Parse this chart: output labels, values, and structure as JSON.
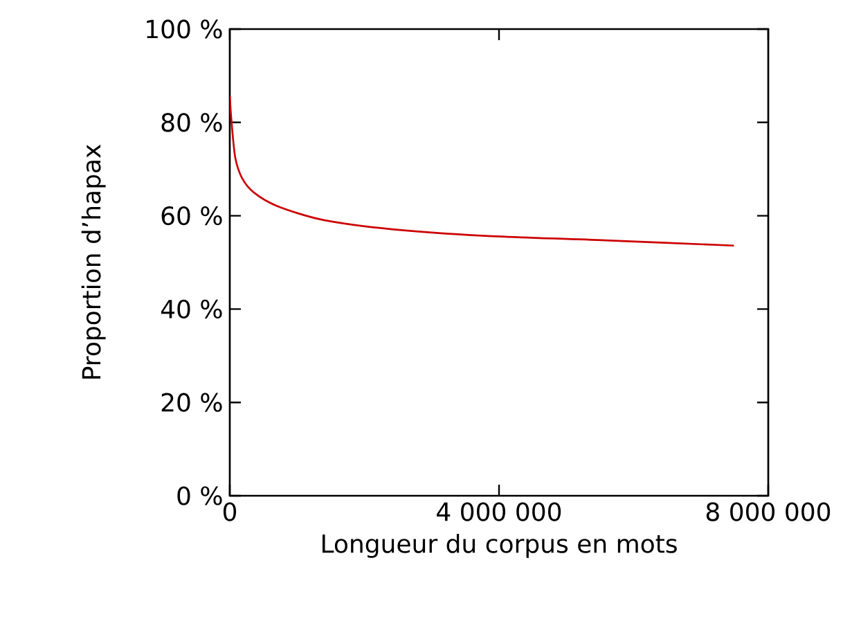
{
  "chart_data": {
    "type": "line",
    "xlabel": "Longueur du corpus en mots",
    "ylabel": "Proportion d’hapax",
    "xlim": [
      0,
      8000000
    ],
    "ylim": [
      0,
      100
    ],
    "xticks": [
      {
        "value": 0,
        "label": "0"
      },
      {
        "value": 4000000,
        "label": "4 000 000"
      },
      {
        "value": 8000000,
        "label": "8 000 000"
      }
    ],
    "yticks": [
      {
        "value": 0,
        "label": "0 %"
      },
      {
        "value": 20,
        "label": "20 %"
      },
      {
        "value": 40,
        "label": "40 %"
      },
      {
        "value": 60,
        "label": "60 %"
      },
      {
        "value": 80,
        "label": "80 %"
      },
      {
        "value": 100,
        "label": "100 %"
      }
    ],
    "series": [
      {
        "color": "#cc0000",
        "x": [
          0,
          27000,
          82000,
          185000,
          356000,
          700000,
          1385000,
          2410000,
          3790000,
          5640000,
          7490000
        ],
        "values": [
          85.6,
          80,
          72.4,
          68,
          65,
          62.1,
          59.1,
          57.1,
          55.7,
          54.7,
          53.6
        ]
      }
    ],
    "grid": false,
    "marker": "none",
    "line_style": "solid"
  }
}
